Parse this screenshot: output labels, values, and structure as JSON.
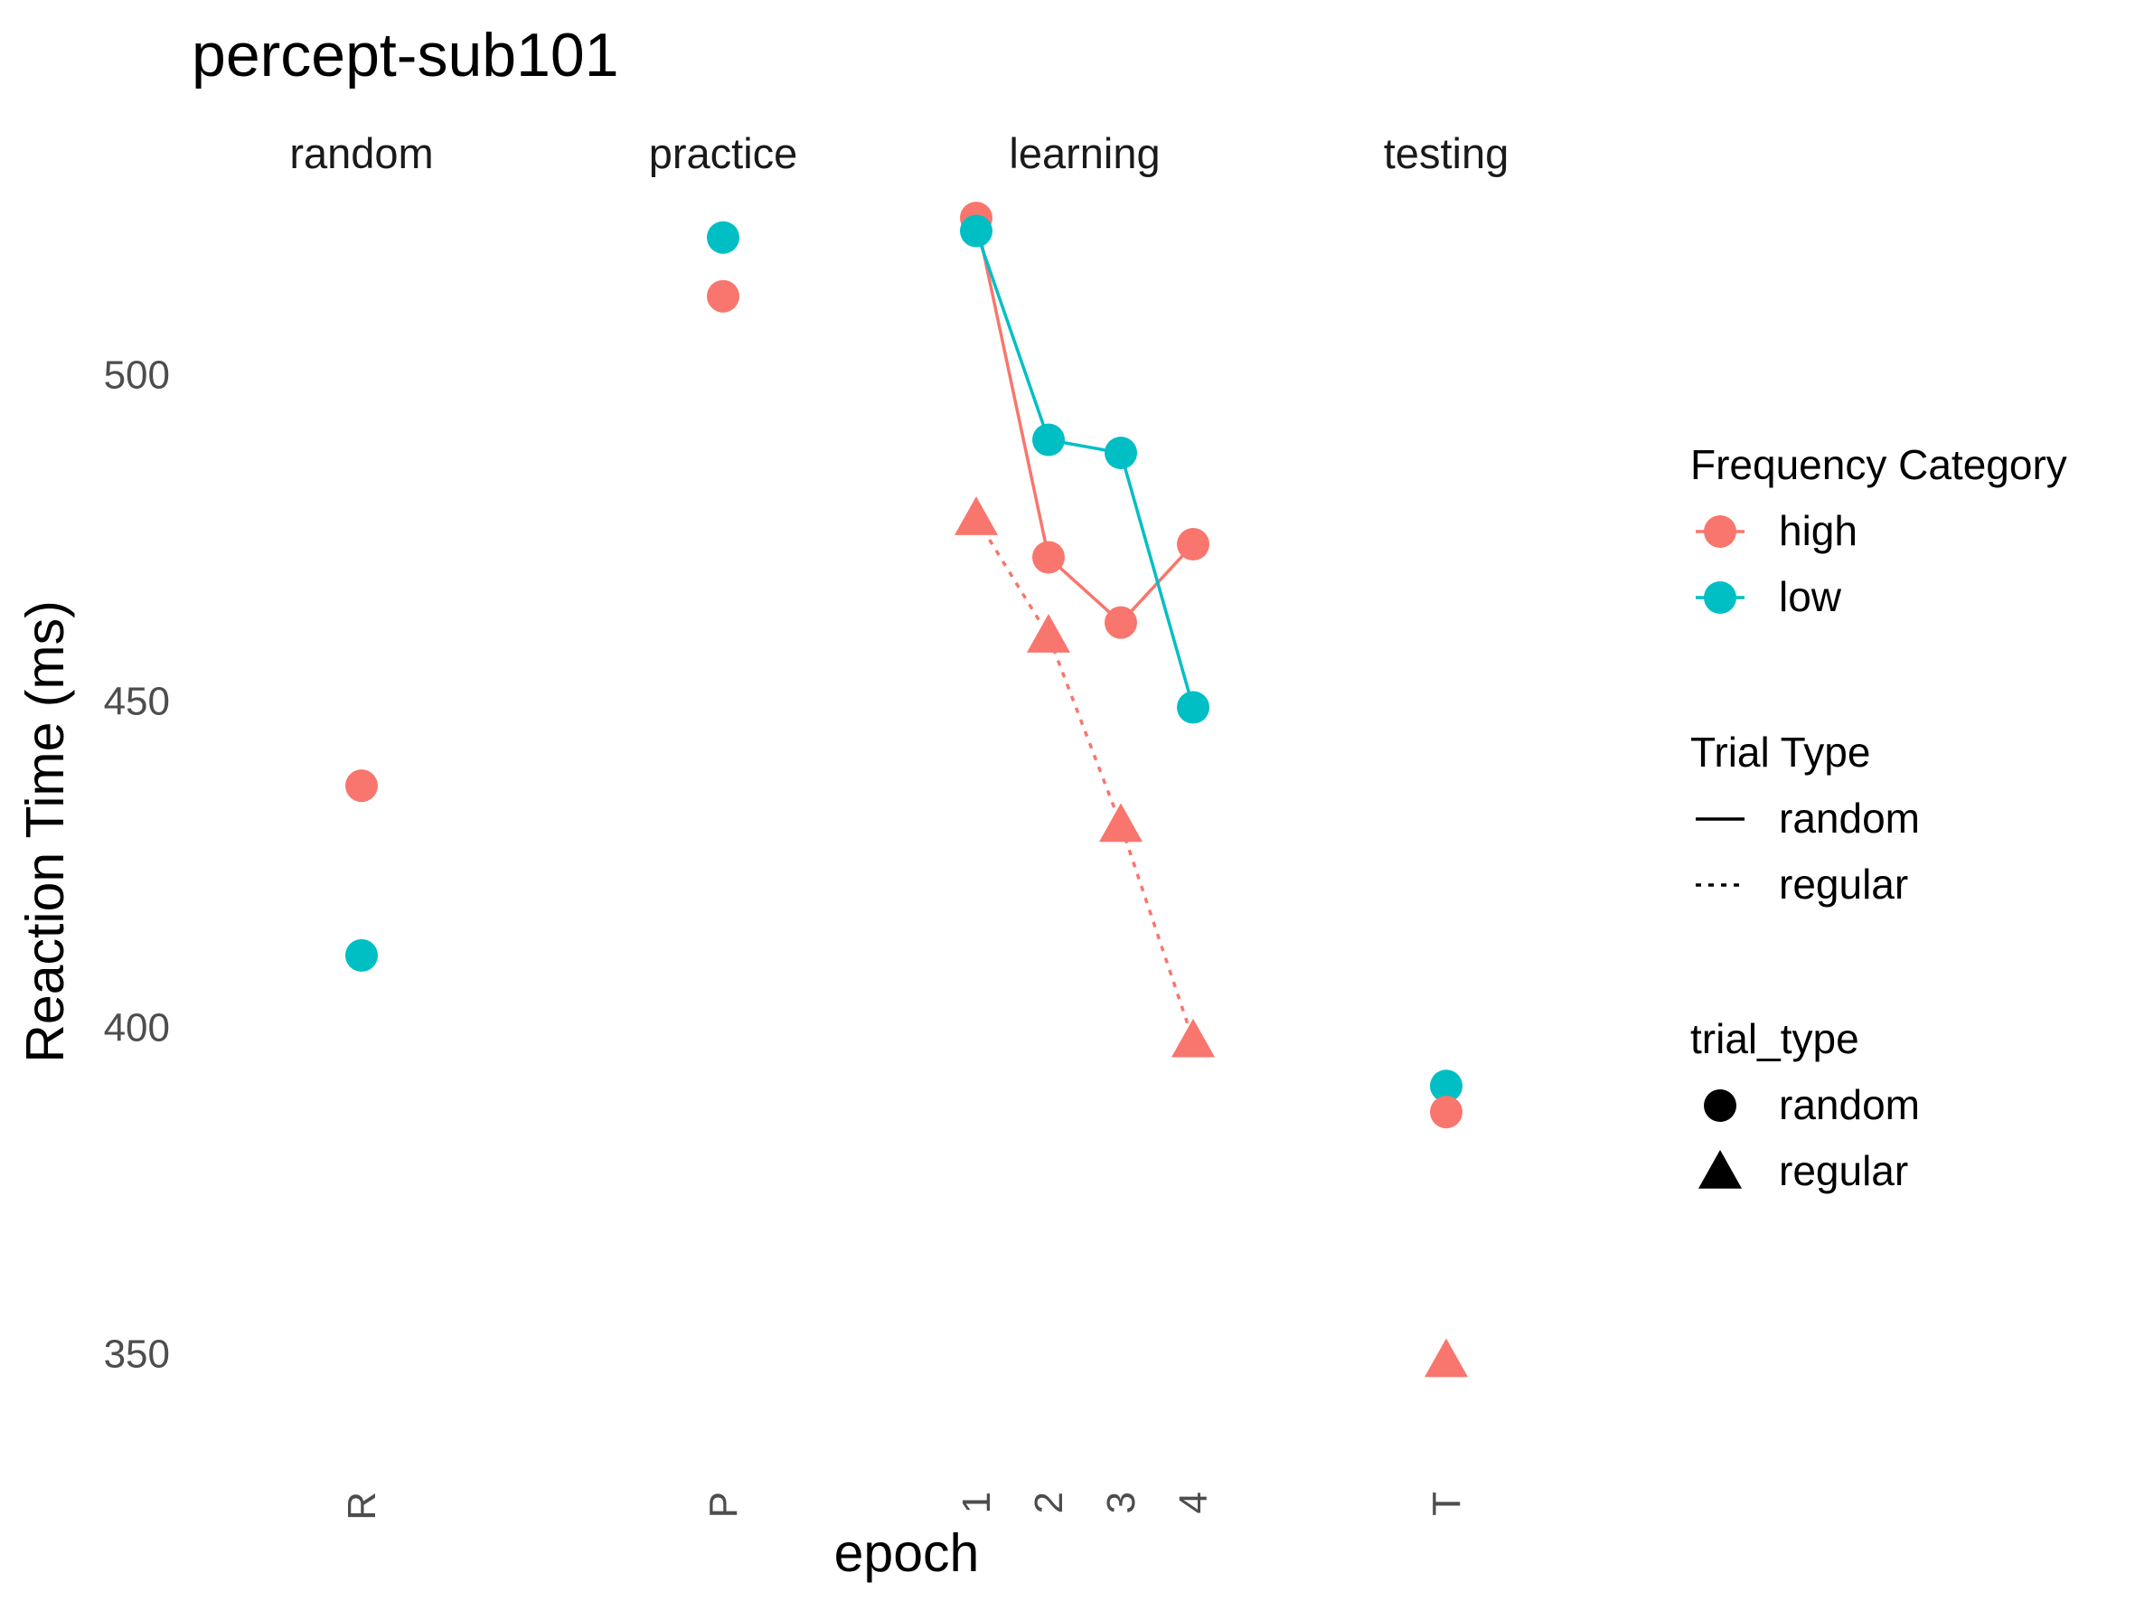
{
  "chart_data": {
    "type": "line",
    "title": "percept-sub101",
    "xlabel": "epoch",
    "ylabel": "Reaction Time (ms)",
    "ylim": [
      333,
      538
    ],
    "yticks": [
      350,
      400,
      450,
      500
    ],
    "grid": false,
    "legend_position": "right",
    "facets": [
      {
        "label": "random",
        "ticks": [
          "R"
        ]
      },
      {
        "label": "practice",
        "ticks": [
          "P"
        ]
      },
      {
        "label": "learning",
        "ticks": [
          "1",
          "2",
          "3",
          "4"
        ]
      },
      {
        "label": "testing",
        "ticks": [
          "T"
        ]
      }
    ],
    "series": [
      {
        "facet": "random",
        "frequency": "high",
        "trial": "random",
        "x": [
          "R"
        ],
        "values": [
          437
        ]
      },
      {
        "facet": "random",
        "frequency": "low",
        "trial": "random",
        "x": [
          "R"
        ],
        "values": [
          411
        ]
      },
      {
        "facet": "practice",
        "frequency": "low",
        "trial": "random",
        "x": [
          "P"
        ],
        "values": [
          521
        ]
      },
      {
        "facet": "practice",
        "frequency": "high",
        "trial": "random",
        "x": [
          "P"
        ],
        "values": [
          512
        ]
      },
      {
        "facet": "learning",
        "frequency": "high",
        "trial": "random",
        "x": [
          "1",
          "2",
          "3",
          "4"
        ],
        "values": [
          524,
          472,
          462,
          474
        ]
      },
      {
        "facet": "learning",
        "frequency": "low",
        "trial": "random",
        "x": [
          "1",
          "2",
          "3",
          "4"
        ],
        "values": [
          522,
          490,
          488,
          449
        ]
      },
      {
        "facet": "learning",
        "frequency": "high",
        "trial": "regular",
        "x": [
          "1",
          "2",
          "3",
          "4"
        ],
        "values": [
          478,
          460,
          431,
          398
        ]
      },
      {
        "facet": "testing",
        "frequency": "low",
        "trial": "random",
        "x": [
          "T"
        ],
        "values": [
          391
        ]
      },
      {
        "facet": "testing",
        "frequency": "high",
        "trial": "random",
        "x": [
          "T"
        ],
        "values": [
          387
        ]
      },
      {
        "facet": "testing",
        "frequency": "high",
        "trial": "regular",
        "x": [
          "T"
        ],
        "values": [
          349
        ]
      }
    ],
    "colors": {
      "high": "#F8766D",
      "low": "#00BFC4"
    },
    "legends": [
      {
        "title": "Frequency Category",
        "items": [
          {
            "label": "high",
            "kind": "color",
            "key": "high"
          },
          {
            "label": "low",
            "kind": "color",
            "key": "low"
          }
        ]
      },
      {
        "title": "Trial Type",
        "items": [
          {
            "label": "random",
            "kind": "linetype",
            "key": "solid"
          },
          {
            "label": "regular",
            "kind": "linetype",
            "key": "dotted"
          }
        ]
      },
      {
        "title": "trial_type",
        "items": [
          {
            "label": "random",
            "kind": "shape",
            "key": "circle"
          },
          {
            "label": "regular",
            "kind": "shape",
            "key": "triangle"
          }
        ]
      }
    ]
  }
}
